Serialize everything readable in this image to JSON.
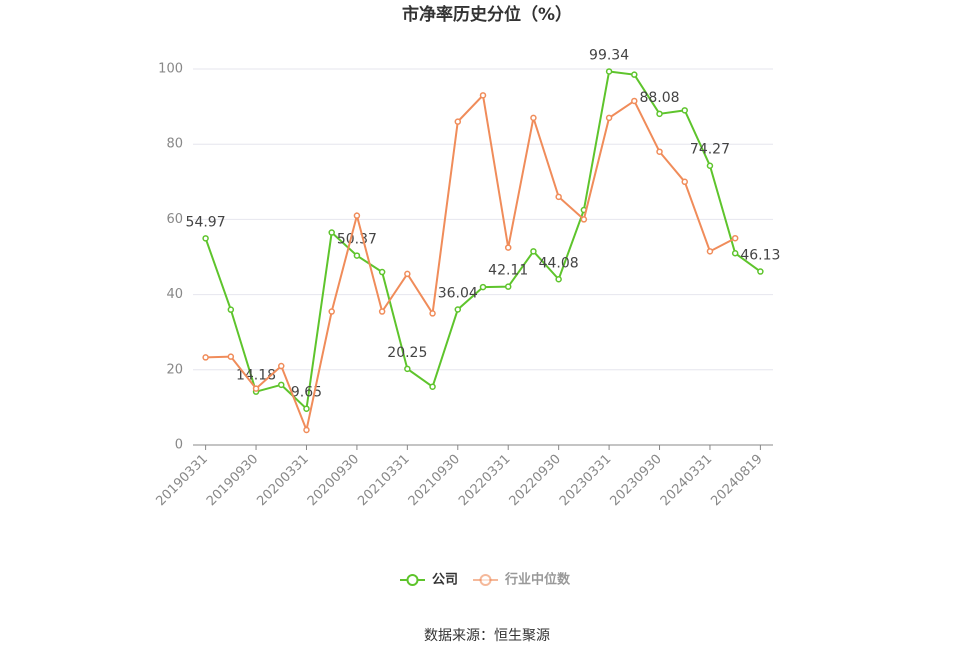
{
  "chart_data": {
    "type": "line",
    "title": "市净率历史分位（%）",
    "source": "数据来源：恒生聚源",
    "categories": [
      "20190331",
      null,
      "20190930",
      null,
      "20200331",
      null,
      "20200930",
      null,
      "20210331",
      null,
      "20210930",
      null,
      "20220331",
      null,
      "20220930",
      null,
      "20230331",
      null,
      "20230930",
      null,
      "20240331",
      null,
      "20240819"
    ],
    "series": [
      {
        "name": "公司",
        "color": "#5ec42c",
        "values": [
          54.97,
          36,
          14.18,
          16,
          9.65,
          56.5,
          50.37,
          46,
          20.25,
          15.5,
          36.04,
          42,
          42.11,
          51.5,
          44.08,
          62.5,
          99.34,
          98.5,
          88.08,
          89,
          74.27,
          51,
          46.13
        ],
        "value_labels": [
          "54.97",
          null,
          "14.18",
          null,
          "9.65",
          null,
          "50.37",
          null,
          "20.25",
          null,
          "36.04",
          null,
          "42.11",
          null,
          "44.08",
          null,
          "99.34",
          null,
          "88.08",
          null,
          "74.27",
          null,
          "46.13"
        ]
      },
      {
        "name": "行业中位数",
        "color": "#f08c5a",
        "values": [
          23.3,
          23.5,
          15,
          21,
          4,
          35.5,
          61,
          35.5,
          45.5,
          35,
          86,
          93,
          52.5,
          87,
          66,
          60,
          87,
          91.5,
          78,
          70,
          51.5,
          55,
          null
        ]
      }
    ],
    "ylim": [
      0,
      100
    ],
    "yticks": [
      0,
      20,
      40,
      60,
      80,
      100
    ],
    "grid": true,
    "legend": "bottom"
  }
}
